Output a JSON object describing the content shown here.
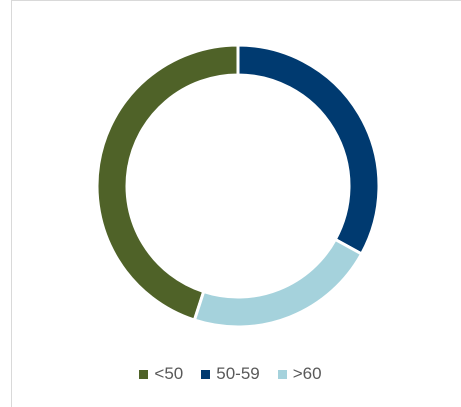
{
  "chart_data": {
    "type": "pie",
    "donut": true,
    "categories": [
      "<50",
      "50-59",
      ">60"
    ],
    "values": [
      45,
      33,
      22
    ],
    "colors": [
      "#4f6228",
      "#003a70",
      "#a5d2dc"
    ],
    "title": "",
    "legend_position": "bottom"
  }
}
